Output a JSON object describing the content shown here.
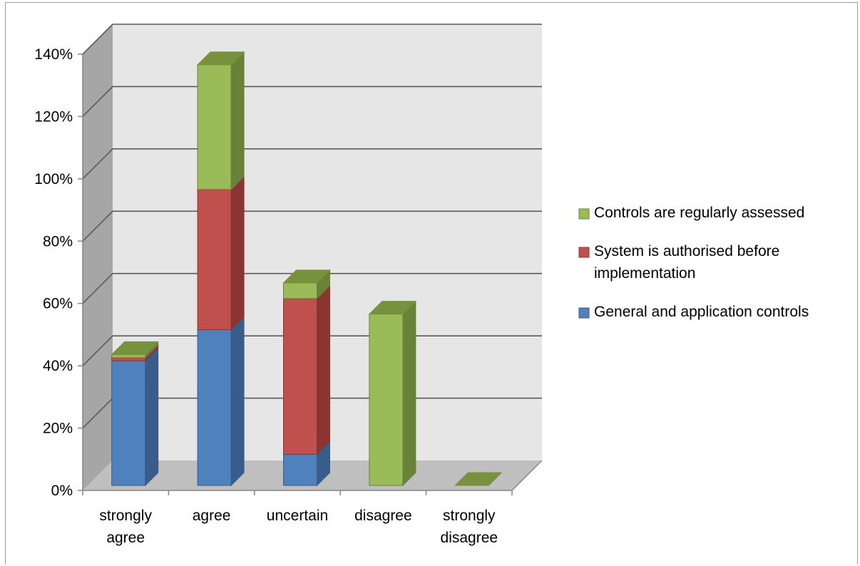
{
  "chart_data": {
    "type": "bar",
    "stacked": true,
    "three_d": true,
    "categories": [
      "strongly agree",
      "agree",
      "uncertain",
      "disagree",
      "strongly disagree"
    ],
    "category_lines": [
      [
        "strongly",
        "agree"
      ],
      [
        "agree"
      ],
      [
        "uncertain"
      ],
      [
        "disagree"
      ],
      [
        "strongly",
        "disagree"
      ]
    ],
    "series": [
      {
        "name": "General and application controls",
        "values": [
          40,
          50,
          10,
          0,
          0
        ],
        "color": "#4f81bd",
        "side_color": "#385d8a",
        "top_color": "#3c6493"
      },
      {
        "name": "System is authorised before implementation",
        "values": [
          1,
          45,
          50,
          0,
          0
        ],
        "color": "#c0504d",
        "side_color": "#8b3533",
        "top_color": "#943a37"
      },
      {
        "name": "Controls are regularly assessed",
        "values": [
          1,
          40,
          5,
          55,
          0
        ],
        "color": "#9bbb59",
        "side_color": "#6a8138",
        "top_color": "#76923c"
      }
    ],
    "legend_lines": [
      [
        "Controls are regularly assessed"
      ],
      [
        "System is authorised before",
        "implementation"
      ],
      [
        "General and application controls"
      ]
    ],
    "yticks": [
      "0%",
      "20%",
      "40%",
      "60%",
      "80%",
      "100%",
      "120%",
      "140%"
    ],
    "ylim": [
      0,
      140
    ],
    "grid": true,
    "legend_position": "right",
    "wall_color": "#e6e6e6",
    "floor_color": "#bfbfbf",
    "left_wall_color": "#a6a6a6",
    "gridline_color": "#595959"
  }
}
